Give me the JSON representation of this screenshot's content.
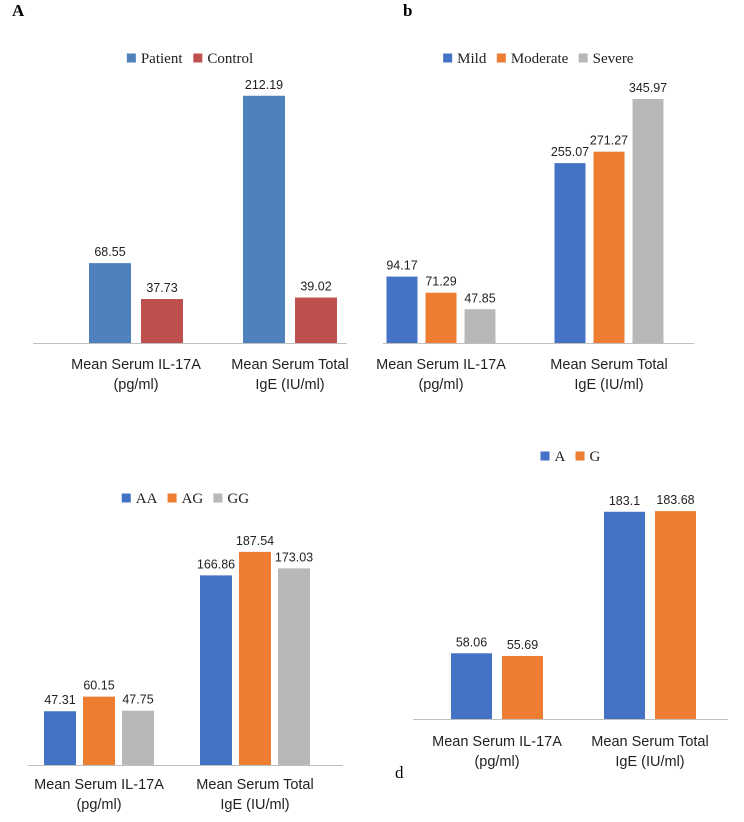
{
  "chart_data": [
    {
      "type": "bar",
      "panel_label": "A",
      "categories": [
        [
          "Mean Serum IL-17A",
          "(pg/ml)"
        ],
        [
          "Mean Serum Total",
          "IgE (IU/ml)"
        ]
      ],
      "series": [
        {
          "name": "Patient",
          "color": "#4F81BD",
          "values": [
            68.55,
            212.19
          ]
        },
        {
          "name": "Control",
          "color": "#C0504D",
          "values": [
            37.73,
            39.02
          ]
        }
      ],
      "data_labels": [
        [
          "68.55",
          "212.19"
        ],
        [
          "37.73",
          "39.02"
        ]
      ],
      "ylim": [
        0,
        230
      ],
      "legend_position": "top-center",
      "grid": false
    },
    {
      "type": "bar",
      "panel_label": "b",
      "categories": [
        [
          "Mean Serum IL-17A",
          "(pg/ml)"
        ],
        [
          "Mean Serum Total",
          "IgE (IU/ml)"
        ]
      ],
      "series": [
        {
          "name": "Mild",
          "color": "#4472C4",
          "values": [
            94.17,
            255.07
          ]
        },
        {
          "name": "Moderate",
          "color": "#ED7D31",
          "values": [
            71.29,
            271.27
          ]
        },
        {
          "name": "Severe",
          "color": "#B8B8B8",
          "values": [
            47.85,
            345.97
          ]
        }
      ],
      "data_labels": [
        [
          "94.17",
          "255.07"
        ],
        [
          "71.29",
          "271.27"
        ],
        [
          "47.85",
          "345.97"
        ]
      ],
      "ylim": [
        0,
        380
      ],
      "legend_position": "top-center",
      "grid": false
    },
    {
      "type": "bar",
      "panel_label": "",
      "categories": [
        [
          "Mean Serum IL-17A",
          "(pg/ml)"
        ],
        [
          "Mean Serum Total",
          "IgE (IU/ml)"
        ]
      ],
      "series": [
        {
          "name": "AA",
          "color": "#4472C4",
          "values": [
            47.31,
            166.86
          ]
        },
        {
          "name": "AG",
          "color": "#ED7D31",
          "values": [
            60.15,
            187.54
          ]
        },
        {
          "name": "GG",
          "color": "#B8B8B8",
          "values": [
            47.75,
            173.03
          ]
        }
      ],
      "data_labels": [
        [
          "47.31",
          "166.86"
        ],
        [
          "60.15",
          "187.54"
        ],
        [
          "47.75",
          "173.03"
        ]
      ],
      "ylim": [
        0,
        220
      ],
      "legend_position": "top-center",
      "grid": false
    },
    {
      "type": "bar",
      "panel_label": "d",
      "categories": [
        [
          "Mean Serum IL-17A",
          "(pg/ml)"
        ],
        [
          "Mean Serum Total",
          "IgE (IU/ml)"
        ]
      ],
      "series": [
        {
          "name": "A",
          "color": "#4472C4",
          "values": [
            58.06,
            183.1
          ]
        },
        {
          "name": "G",
          "color": "#ED7D31",
          "values": [
            55.69,
            183.68
          ]
        }
      ],
      "data_labels": [
        [
          "58.06",
          "183.1"
        ],
        [
          "55.69",
          "183.68"
        ]
      ],
      "ylim": [
        0,
        220
      ],
      "legend_position": "top-center",
      "grid": false
    }
  ]
}
